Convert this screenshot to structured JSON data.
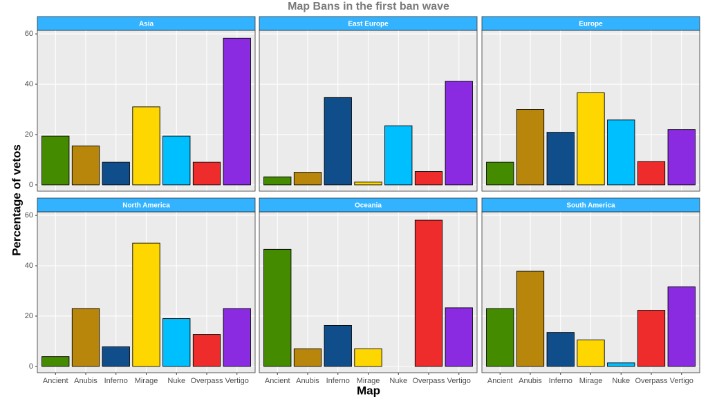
{
  "chart_data": {
    "type": "bar",
    "title": "Map Bans in the first ban wave",
    "xlabel": "Map",
    "ylabel": "Percentage of vetos",
    "categories": [
      "Ancient",
      "Anubis",
      "Inferno",
      "Mirage",
      "Nuke",
      "Overpass",
      "Vertigo"
    ],
    "colors": [
      "#458b00",
      "#b8860b",
      "#104e8b",
      "#ffd700",
      "#00bfff",
      "#ee2c2c",
      "#8a2be2"
    ],
    "ylim": [
      -2.5,
      61.4
    ],
    "yticks": [
      0,
      20,
      40,
      60
    ],
    "grid": true,
    "panels": [
      {
        "title": "Asia",
        "values": [
          19.4,
          15.5,
          9,
          31,
          19.4,
          9,
          58.3
        ]
      },
      {
        "title": "East Europe",
        "values": [
          3.2,
          5,
          34.7,
          1.1,
          23.5,
          5.3,
          41.2
        ]
      },
      {
        "title": "Europe",
        "values": [
          9,
          30,
          20.9,
          36.6,
          25.8,
          9.3,
          22
        ]
      },
      {
        "title": "North America",
        "values": [
          3.9,
          23,
          7.8,
          49,
          19,
          12.7,
          23
        ]
      },
      {
        "title": "Oceania",
        "values": [
          46.5,
          7,
          16.3,
          7,
          0,
          58.1,
          23.3
        ]
      },
      {
        "title": "South America",
        "values": [
          23,
          37.8,
          13.5,
          10.5,
          1.4,
          22.3,
          31.6
        ]
      }
    ]
  }
}
